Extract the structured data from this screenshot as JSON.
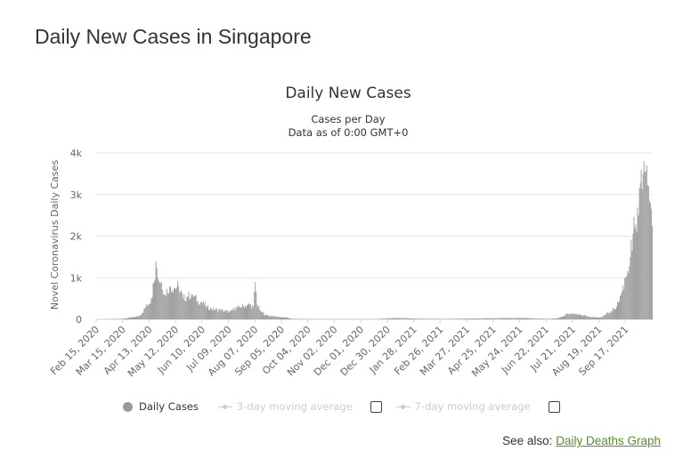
{
  "page": {
    "title": "Daily New Cases in Singapore"
  },
  "chart_data": {
    "type": "bar",
    "title": "Daily New Cases",
    "subtitle": [
      "Cases per Day",
      "Data as of 0:00 GMT+0"
    ],
    "ylabel": "Novel Coronavirus Daily Cases",
    "xlabel": "",
    "ylim": [
      0,
      4000
    ],
    "yticks": [
      0,
      1000,
      2000,
      3000,
      4000
    ],
    "ytick_labels": [
      "0",
      "1k",
      "2k",
      "3k",
      "4k"
    ],
    "x_start": "2020-02-15",
    "x_end": "2021-10-16",
    "xtick_labels": [
      "Feb 15, 2020",
      "Mar 15, 2020",
      "Apr 13, 2020",
      "May 12, 2020",
      "Jun 10, 2020",
      "Jul 09, 2020",
      "Aug 07, 2020",
      "Sep 05, 2020",
      "Oct 04, 2020",
      "Nov 02, 2020",
      "Dec 01, 2020",
      "Dec 30, 2020",
      "Jan 28, 2021",
      "Feb 26, 2021",
      "Mar 27, 2021",
      "Apr 25, 2021",
      "May 24, 2021",
      "Jun 22, 2021",
      "Jul 21, 2021",
      "Aug 19, 2021",
      "Sep 17, 2021"
    ],
    "grid": true,
    "legend_position": "bottom",
    "series": [
      {
        "name": "Daily Cases",
        "color": "#999999",
        "points": [
          [
            "2020-02-15",
            0
          ],
          [
            "2020-03-01",
            5
          ],
          [
            "2020-03-15",
            15
          ],
          [
            "2020-03-25",
            50
          ],
          [
            "2020-04-01",
            70
          ],
          [
            "2020-04-05",
            150
          ],
          [
            "2020-04-09",
            300
          ],
          [
            "2020-04-12",
            350
          ],
          [
            "2020-04-15",
            500
          ],
          [
            "2020-04-18",
            900
          ],
          [
            "2020-04-20",
            1400
          ],
          [
            "2020-04-22",
            1000
          ],
          [
            "2020-04-26",
            900
          ],
          [
            "2020-04-30",
            600
          ],
          [
            "2020-05-05",
            800
          ],
          [
            "2020-05-10",
            750
          ],
          [
            "2020-05-15",
            800
          ],
          [
            "2020-05-20",
            500
          ],
          [
            "2020-05-25",
            550
          ],
          [
            "2020-05-30",
            600
          ],
          [
            "2020-06-05",
            450
          ],
          [
            "2020-06-10",
            400
          ],
          [
            "2020-06-15",
            300
          ],
          [
            "2020-06-20",
            250
          ],
          [
            "2020-06-30",
            220
          ],
          [
            "2020-07-05",
            200
          ],
          [
            "2020-07-10",
            180
          ],
          [
            "2020-07-15",
            250
          ],
          [
            "2020-07-20",
            300
          ],
          [
            "2020-07-25",
            320
          ],
          [
            "2020-08-01",
            350
          ],
          [
            "2020-08-05",
            300
          ],
          [
            "2020-08-07",
            900
          ],
          [
            "2020-08-09",
            350
          ],
          [
            "2020-08-13",
            200
          ],
          [
            "2020-08-18",
            100
          ],
          [
            "2020-08-25",
            80
          ],
          [
            "2020-09-05",
            50
          ],
          [
            "2020-09-12",
            40
          ],
          [
            "2020-09-15",
            15
          ],
          [
            "2020-10-01",
            8
          ],
          [
            "2020-11-01",
            5
          ],
          [
            "2020-12-15",
            5
          ],
          [
            "2021-01-01",
            25
          ],
          [
            "2021-01-15",
            30
          ],
          [
            "2021-02-01",
            15
          ],
          [
            "2021-03-01",
            10
          ],
          [
            "2021-04-01",
            20
          ],
          [
            "2021-04-25",
            25
          ],
          [
            "2021-05-10",
            30
          ],
          [
            "2021-05-25",
            35
          ],
          [
            "2021-06-10",
            20
          ],
          [
            "2021-06-25",
            10
          ],
          [
            "2021-07-05",
            30
          ],
          [
            "2021-07-12",
            80
          ],
          [
            "2021-07-15",
            150
          ],
          [
            "2021-07-20",
            140
          ],
          [
            "2021-07-30",
            110
          ],
          [
            "2021-08-10",
            60
          ],
          [
            "2021-08-20",
            40
          ],
          [
            "2021-08-25",
            100
          ],
          [
            "2021-09-01",
            200
          ],
          [
            "2021-09-07",
            300
          ],
          [
            "2021-09-12",
            600
          ],
          [
            "2021-09-17",
            1000
          ],
          [
            "2021-09-22",
            1500
          ],
          [
            "2021-09-27",
            2200
          ],
          [
            "2021-10-01",
            2500
          ],
          [
            "2021-10-06",
            3500
          ],
          [
            "2021-10-10",
            3700
          ],
          [
            "2021-10-14",
            2800
          ],
          [
            "2021-10-16",
            2250
          ]
        ]
      },
      {
        "name": "3-day moving average",
        "visible": false
      },
      {
        "name": "7-day moving average",
        "visible": false
      }
    ]
  },
  "legend": {
    "daily_cases": "Daily Cases",
    "ma3": "3-day moving average",
    "ma7": "7-day moving average"
  },
  "footer": {
    "see_also": "See also:",
    "link": "Daily Deaths Graph"
  }
}
